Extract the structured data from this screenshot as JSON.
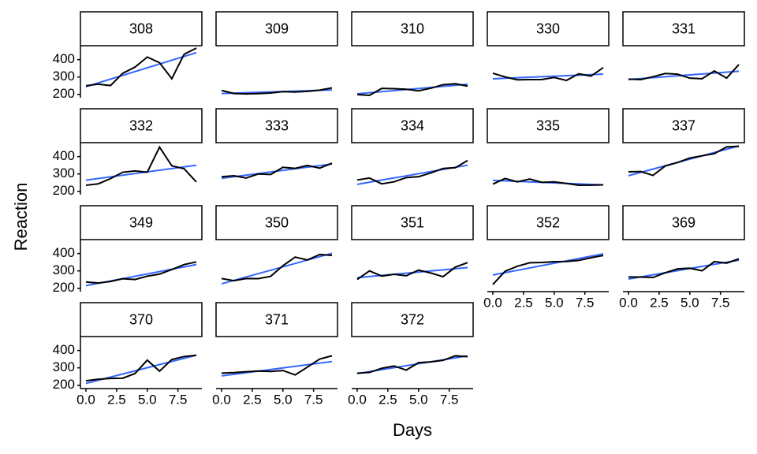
{
  "chart_data": {
    "type": "line",
    "x_label": "Days",
    "y_label": "Reaction",
    "x": [
      0,
      1,
      2,
      3,
      4,
      5,
      6,
      7,
      8,
      9
    ],
    "xlim": [
      -0.45,
      9.45
    ],
    "xticks": [
      {
        "value": 0,
        "label": "0.0"
      },
      {
        "value": 2.5,
        "label": "2.5"
      },
      {
        "value": 5,
        "label": "5.0"
      },
      {
        "value": 7.5,
        "label": "7.5"
      }
    ],
    "ylim": [
      180.7,
      480
    ],
    "yticks": [
      200,
      300,
      400
    ],
    "line_color": "#000000",
    "fit_color": "#3366ff",
    "facets": [
      {
        "label": "308",
        "values": [
          249.56,
          258.7047,
          250.8006,
          321.4398,
          356.8519,
          414.6901,
          382.2038,
          290.1486,
          430.5853,
          466.3535
        ]
      },
      {
        "label": "309",
        "values": [
          222.7339,
          205.2658,
          202.9778,
          204.707,
          207.7161,
          215.9618,
          213.6303,
          217.7272,
          224.2957,
          237.3142
        ]
      },
      {
        "label": "310",
        "values": [
          199.0539,
          194.3322,
          234.32,
          232.8416,
          229.3074,
          220.4579,
          235.4208,
          255.7511,
          261.0125,
          247.5153
        ]
      },
      {
        "label": "330",
        "values": [
          321.5426,
          300.4002,
          283.8565,
          285.133,
          285.7973,
          297.5855,
          280.2396,
          318.2613,
          305.3495,
          354.0487
        ]
      },
      {
        "label": "331",
        "values": [
          287.6079,
          285.0,
          301.8206,
          320.1153,
          316.2773,
          293.3187,
          290.075,
          334.8177,
          293.7469,
          371.5811
        ]
      },
      {
        "label": "332",
        "values": [
          234.8606,
          242.8118,
          272.9613,
          309.7688,
          317.4629,
          309.9976,
          454.1619,
          346.8311,
          330.3003,
          253.8644
        ]
      },
      {
        "label": "333",
        "values": [
          283.8424,
          289.555,
          276.7693,
          299.8097,
          297.171,
          338.1665,
          332.0265,
          348.8399,
          333.36,
          362.0428
        ]
      },
      {
        "label": "334",
        "values": [
          265.4731,
          276.2012,
          243.3647,
          254.6723,
          279.0244,
          284.1912,
          305.5248,
          331.5229,
          335.7469,
          377.299
        ]
      },
      {
        "label": "335",
        "values": [
          241.6083,
          273.9472,
          254.4907,
          270.8021,
          251.4519,
          254.6362,
          245.4523,
          235.311,
          235.7541,
          237.2466
        ]
      },
      {
        "label": "337",
        "values": [
          312.3666,
          313.8058,
          291.6112,
          346.1222,
          365.7324,
          391.8385,
          404.2601,
          416.6923,
          455.8643,
          458.9167
        ]
      },
      {
        "label": "349",
        "values": [
          236.1032,
          230.3167,
          238.9256,
          254.922,
          250.7103,
          269.7744,
          281.5648,
          308.102,
          336.2806,
          351.6451
        ]
      },
      {
        "label": "350",
        "values": [
          256.2968,
          243.4543,
          256.2046,
          255.5271,
          268.9165,
          329.7247,
          379.4445,
          362.9184,
          394.4872,
          389.0527
        ]
      },
      {
        "label": "351",
        "values": [
          250.5265,
          300.0576,
          269.8939,
          280.5891,
          271.8274,
          304.6336,
          287.7466,
          266.5955,
          321.5418,
          347.5655
        ]
      },
      {
        "label": "352",
        "values": [
          221.6771,
          298.1939,
          326.8785,
          346.8555,
          348.7402,
          352.8287,
          354.4266,
          360.4326,
          375.6406,
          388.5417
        ]
      },
      {
        "label": "369",
        "values": [
          265.2188,
          264.6657,
          262.0878,
          289.4969,
          311.4975,
          315.3893,
          300.8888,
          353.5404,
          344.8971,
          368.863
        ]
      },
      {
        "label": "370",
        "values": [
          225.264,
          234.5235,
          238.9008,
          240.473,
          267.5373,
          344.1937,
          281.1481,
          347.5855,
          365.163,
          372.2288
        ]
      },
      {
        "label": "371",
        "values": [
          269.8804,
          272.4428,
          277.8989,
          281.7895,
          279.1705,
          284.512,
          259.2658,
          304.6306,
          350.7807,
          369.4692
        ]
      },
      {
        "label": "372",
        "values": [
          269.4117,
          273.474,
          297.5968,
          310.6316,
          287.1726,
          329.6076,
          334.4818,
          343.2199,
          369.1417,
          364.1236
        ]
      }
    ]
  }
}
